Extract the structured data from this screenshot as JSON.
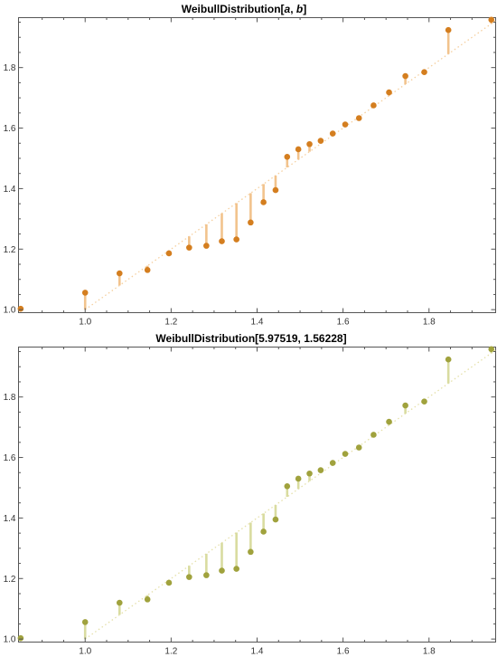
{
  "chart_data": [
    {
      "type": "scatter",
      "title": "WeibullDistribution[a, b]",
      "title_parts": [
        "WeibullDistribution[",
        "a",
        ", ",
        "b",
        "]"
      ],
      "xlabel": "",
      "ylabel": "",
      "xlim": [
        0.845,
        1.955
      ],
      "ylim": [
        0.99,
        1.965
      ],
      "x_ticks": [
        1.0,
        1.2,
        1.4,
        1.6,
        1.8
      ],
      "x_tick_labels": [
        "1.0",
        "1.2",
        "1.4",
        "1.6",
        "1.8"
      ],
      "y_ticks": [
        1.0,
        1.2,
        1.4,
        1.6,
        1.8
      ],
      "y_tick_labels": [
        "1.0",
        "1.2",
        "1.4",
        "1.6",
        "1.8"
      ],
      "reference_line": {
        "from": [
          1.0,
          1.0
        ],
        "to": [
          1.955,
          1.955
        ]
      },
      "point_color": "#d47e1f",
      "stem_color": "#f2c38d",
      "line_color": "#f5cf9e",
      "series": [
        {
          "x": [
            0.85,
            1.0,
            1.08,
            1.145,
            1.195,
            1.242,
            1.282,
            1.318,
            1.352,
            1.385,
            1.415,
            1.443,
            1.47,
            1.496,
            1.522,
            1.548,
            1.576,
            1.605,
            1.637,
            1.671,
            1.707,
            1.745,
            1.789,
            1.845,
            1.945
          ],
          "y": [
            1.003,
            1.056,
            1.12,
            1.131,
            1.186,
            1.205,
            1.211,
            1.226,
            1.232,
            1.288,
            1.355,
            1.395,
            1.505,
            1.53,
            1.547,
            1.558,
            1.582,
            1.612,
            1.633,
            1.675,
            1.718,
            1.772,
            1.785,
            1.924,
            1.958
          ]
        }
      ]
    },
    {
      "type": "scatter",
      "title": "WeibullDistribution[5.97519, 1.56228]",
      "title_parts": [
        "WeibullDistribution[5.97519, 1.56228]"
      ],
      "xlabel": "",
      "ylabel": "",
      "xlim": [
        0.845,
        1.955
      ],
      "ylim": [
        0.99,
        1.965
      ],
      "x_ticks": [
        1.0,
        1.2,
        1.4,
        1.6,
        1.8
      ],
      "x_tick_labels": [
        "1.0",
        "1.2",
        "1.4",
        "1.6",
        "1.8"
      ],
      "y_ticks": [
        1.0,
        1.2,
        1.4,
        1.6,
        1.8
      ],
      "y_tick_labels": [
        "1.0",
        "1.2",
        "1.4",
        "1.6",
        "1.8"
      ],
      "reference_line": {
        "from": [
          1.0,
          1.0
        ],
        "to": [
          1.955,
          1.955
        ]
      },
      "point_color": "#a0a23d",
      "stem_color": "#d9dca0",
      "line_color": "#e5e0a9",
      "series": [
        {
          "x": [
            0.85,
            1.0,
            1.08,
            1.145,
            1.195,
            1.242,
            1.282,
            1.318,
            1.352,
            1.385,
            1.415,
            1.443,
            1.47,
            1.496,
            1.522,
            1.548,
            1.576,
            1.605,
            1.637,
            1.671,
            1.707,
            1.745,
            1.789,
            1.845,
            1.945
          ],
          "y": [
            1.003,
            1.056,
            1.12,
            1.131,
            1.186,
            1.205,
            1.211,
            1.226,
            1.232,
            1.288,
            1.355,
            1.395,
            1.505,
            1.53,
            1.547,
            1.558,
            1.582,
            1.612,
            1.633,
            1.675,
            1.718,
            1.772,
            1.785,
            1.924,
            1.958
          ]
        }
      ]
    }
  ]
}
